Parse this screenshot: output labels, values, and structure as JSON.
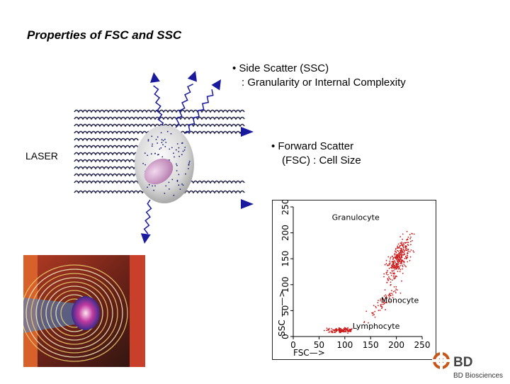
{
  "title": "Properties of FSC and SSC",
  "ssc": {
    "title": "• Side Scatter (SSC)",
    "desc": ": Granularity or Internal Complexity"
  },
  "fsc": {
    "title": "• Forward Scatter",
    "desc": "(FSC) : Cell Size"
  },
  "laser_label": "LASER",
  "brand": {
    "logo_text": "BD",
    "name": "BD Biosciences",
    "color": "#c8561a"
  },
  "colors": {
    "arrow": "#1a1a9e",
    "wave": "#23234a",
    "dots": "#cc1a1a"
  },
  "chart_data": {
    "type": "scatter",
    "xlabel": "FSC—>",
    "ylabel": "SSC — —>",
    "xlim": [
      0,
      250
    ],
    "ylim": [
      0,
      250
    ],
    "xticks": [
      0,
      50,
      100,
      150,
      200,
      250
    ],
    "yticks": [
      0,
      50,
      100,
      150,
      200,
      250
    ],
    "annotations": [
      {
        "text": "Granulocyte",
        "x": 75,
        "y": 225
      },
      {
        "text": "Monocyte",
        "x": 170,
        "y": 65
      },
      {
        "text": "Lymphocyte",
        "x": 115,
        "y": 15
      }
    ],
    "clusters": [
      {
        "name": "Lymphocyte",
        "center": [
          90,
          12
        ],
        "spread": [
          20,
          4
        ],
        "count": 130
      },
      {
        "name": "Monocyte",
        "center": [
          175,
          55
        ],
        "spread": [
          30,
          30
        ],
        "count": 70
      },
      {
        "name": "Granulocyte",
        "center": [
          205,
          150
        ],
        "spread": [
          25,
          45
        ],
        "count": 320
      }
    ]
  }
}
